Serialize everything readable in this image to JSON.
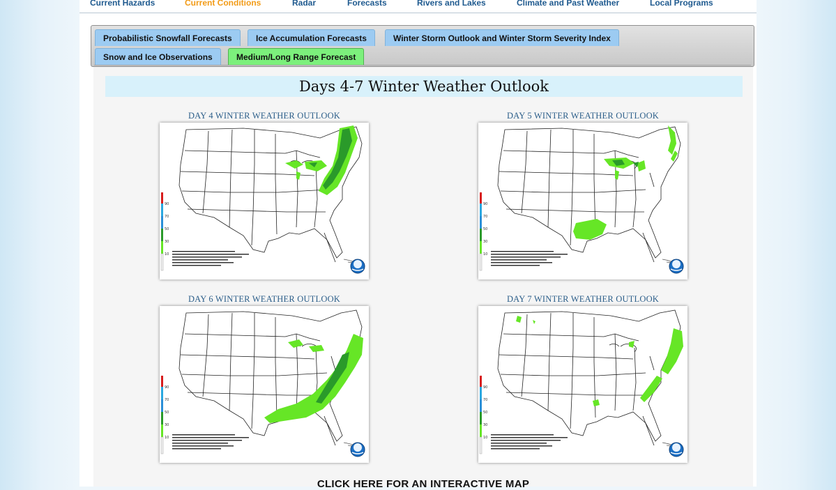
{
  "nav": {
    "items": [
      {
        "label": "Current Hazards",
        "active": false
      },
      {
        "label": "Current Conditions",
        "active": true
      },
      {
        "label": "Radar",
        "active": false
      },
      {
        "label": "Forecasts",
        "active": false
      },
      {
        "label": "Rivers and Lakes",
        "active": false
      },
      {
        "label": "Climate and Past Weather",
        "active": false
      },
      {
        "label": "Local Programs",
        "active": false
      }
    ]
  },
  "tabs": [
    {
      "label": "Probabilistic Snowfall Forecasts",
      "selected": false
    },
    {
      "label": "Ice Accumulation Forecasts",
      "selected": false
    },
    {
      "label": "Winter Storm Outlook and Winter Storm Severity Index",
      "selected": false
    },
    {
      "label": "Snow and Ice Observations",
      "selected": false
    },
    {
      "label": "Medium/Long Range Forecast",
      "selected": true
    }
  ],
  "main": {
    "heading": "Days 4-7 Winter Weather Outlook",
    "panels": [
      {
        "title": "DAY 4 WINTER WEATHER OUTLOOK"
      },
      {
        "title": "DAY 5 WINTER WEATHER OUTLOOK"
      },
      {
        "title": "DAY 6 WINTER WEATHER OUTLOOK"
      },
      {
        "title": "DAY 7 WINTER WEATHER OUTLOOK"
      }
    ],
    "interactive_link": "CLICK HERE FOR AN INTERACTIVE MAP"
  },
  "legend_levels": [
    "90",
    "70",
    "50",
    "30",
    "10"
  ],
  "colors": {
    "nav_active": "#f29b17",
    "nav_text": "#1f5a8f",
    "tab_bg": "#9ccbf2",
    "tab_selected_bg": "#7cf07c",
    "banner_bg": "#d8f1fb",
    "precip_light_green": "#66e626",
    "precip_dark_green": "#2a9a2a"
  }
}
